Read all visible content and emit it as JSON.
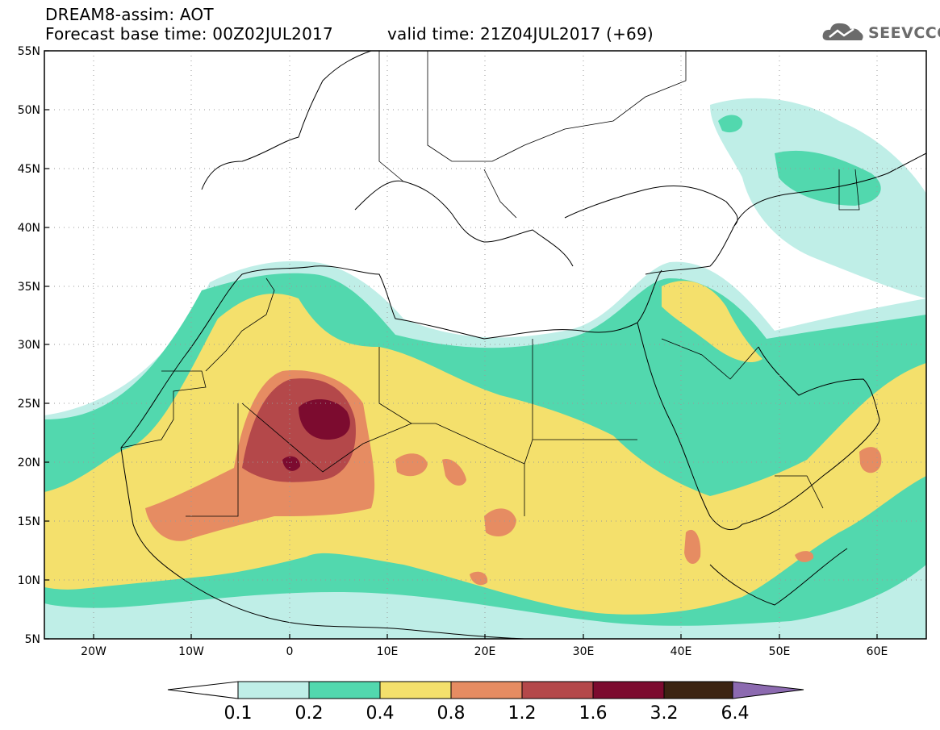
{
  "header": {
    "line1": "DREAM8-assim: AOT",
    "line2_left": "Forecast base time: 00Z02JUL2017",
    "line2_right": "valid time: 21Z04JUL2017 (+69)",
    "logo_text": "SEEVCCC",
    "logo_icon": "cloud-icon"
  },
  "map": {
    "lon_range": [
      -25,
      65
    ],
    "lat_range": [
      5,
      55
    ],
    "lat_ticks": [
      "5N",
      "10N",
      "15N",
      "20N",
      "25N",
      "30N",
      "35N",
      "40N",
      "45N",
      "50N",
      "55N"
    ],
    "lon_ticks": [
      "20W",
      "10W",
      "0",
      "10E",
      "20E",
      "30E",
      "40E",
      "50E",
      "60E"
    ]
  },
  "colorbar": {
    "labels": [
      "0.1",
      "0.2",
      "0.4",
      "0.8",
      "1.2",
      "1.6",
      "3.2",
      "6.4"
    ],
    "colors": {
      "lt01": "#ffffff",
      "c1": "#bfeee7",
      "c2": "#52d8ae",
      "c3": "#f4e06c",
      "c4": "#e68c62",
      "c5": "#b4484a",
      "c6": "#7c0b2f",
      "c7": "#3c2412",
      "gt64": "#8c6ab0"
    }
  }
}
